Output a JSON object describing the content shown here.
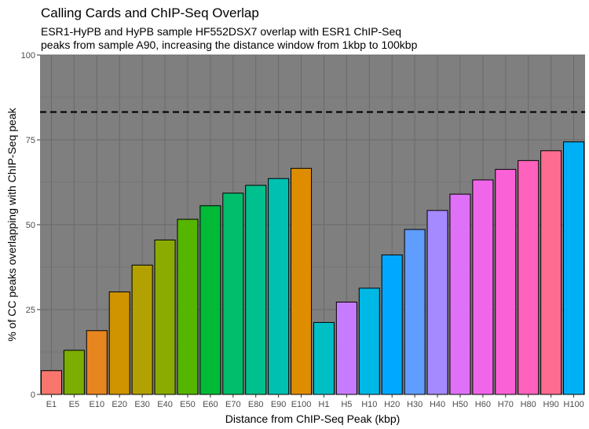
{
  "chart_data": {
    "type": "bar",
    "title": "Calling Cards and ChIP-Seq Overlap",
    "subtitle": [
      "ESR1-HyPB and HyPB sample HF552DSX7 overlap with ESR1 ChIP-Seq",
      "peaks from sample A90, increasing the distance window from 1kbp to 100kbp"
    ],
    "xlabel": "Distance from ChIP-Seq Peak (kbp)",
    "ylabel": "% of CC peaks overlapping with ChIP-Seq peak",
    "ylim": [
      0,
      100
    ],
    "yticks": [
      0,
      25,
      50,
      75,
      100
    ],
    "grid": true,
    "reference_line": {
      "y": 83.2,
      "style": "dashed"
    },
    "categories": [
      "E1",
      "E5",
      "E10",
      "E20",
      "E30",
      "E40",
      "E50",
      "E60",
      "E70",
      "E80",
      "E90",
      "E100",
      "H1",
      "H5",
      "H10",
      "H20",
      "H30",
      "H40",
      "H50",
      "H60",
      "H70",
      "H80",
      "H90",
      "H100"
    ],
    "values": [
      7,
      13,
      18.8,
      30.2,
      38.1,
      45.5,
      51.6,
      55.6,
      59.3,
      61.6,
      63.6,
      66.6,
      21.2,
      27.2,
      31.3,
      41.1,
      48.6,
      54.2,
      59.0,
      63.2,
      66.3,
      68.9,
      71.8,
      74.4
    ],
    "colors": [
      "#F8766D",
      "#7CAE00",
      "#E7851E",
      "#D09400",
      "#B2A100",
      "#8BAB00",
      "#55B501",
      "#00BA38",
      "#00BE6C",
      "#00C08D",
      "#00C0B1",
      "#DE8C00",
      "#00BFC4",
      "#C77CFF",
      "#00B8E5",
      "#00A9FF",
      "#619CFF",
      "#A58AFF",
      "#DF70F8",
      "#F066EA",
      "#FB61D7",
      "#FF62BC",
      "#FF6C91",
      "#00B0F6"
    ],
    "panel_background": "#7f7f7f"
  }
}
